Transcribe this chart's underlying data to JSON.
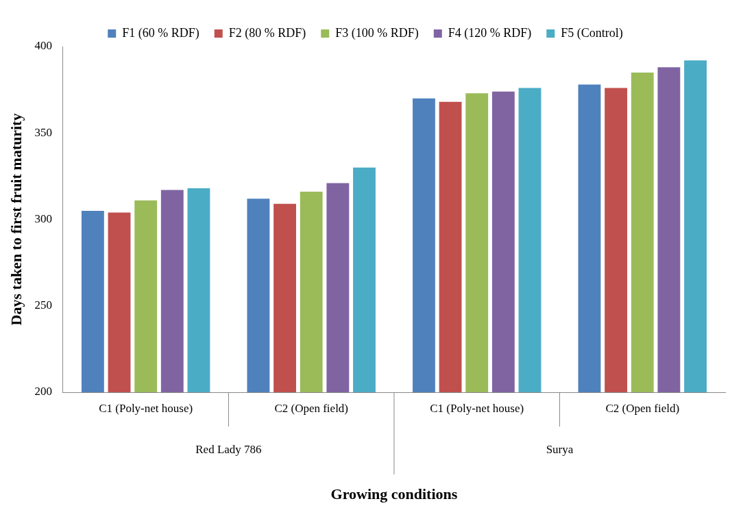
{
  "chart_data": {
    "type": "bar",
    "xlabel": "Growing conditions",
    "ylabel": "Days taken to first fruit maturity",
    "categories": [
      "C1 (Poly-net house)",
      "C2 (Open field)",
      "C1 (Poly-net house)",
      "C2 (Open field)"
    ],
    "annotations": [
      "Red Lady 786",
      "Surya"
    ],
    "series": [
      {
        "name": "F1 (60 % RDF)",
        "color": "#4f81bd",
        "values": [
          305,
          312,
          370,
          378
        ]
      },
      {
        "name": "F2 (80 % RDF)",
        "color": "#c0504d",
        "values": [
          304,
          309,
          368,
          376
        ]
      },
      {
        "name": "F3 (100 % RDF)",
        "color": "#9bbb59",
        "values": [
          311,
          316,
          373,
          385
        ]
      },
      {
        "name": "F4 (120 % RDF)",
        "color": "#8064a2",
        "values": [
          317,
          321,
          374,
          388
        ]
      },
      {
        "name": "F5 (Control)",
        "color": "#4bacc6",
        "values": [
          318,
          330,
          376,
          392
        ]
      }
    ],
    "ylim": [
      200,
      400
    ],
    "yticks": [
      200,
      250,
      300,
      350,
      400
    ],
    "grid": false,
    "legend": "top"
  }
}
